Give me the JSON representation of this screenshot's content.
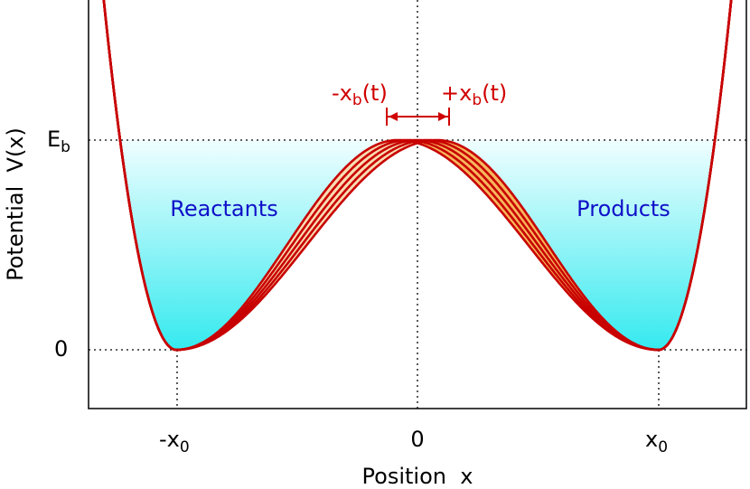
{
  "axes": {
    "y_label": "Potential  V(x)",
    "x_label": "Position  x"
  },
  "y_ticks": [
    {
      "text": "E",
      "sub": "b"
    },
    {
      "text": "0"
    }
  ],
  "x_ticks": [
    {
      "text": "-x",
      "sub": "0"
    },
    {
      "text": "0"
    },
    {
      "text": "x",
      "sub": "0"
    }
  ],
  "regions": {
    "left": "Reactants",
    "right": "Products"
  },
  "barrier": {
    "left": {
      "text": "-x",
      "sub": "b",
      "suffix": "(t)"
    },
    "right": {
      "text": "+x",
      "sub": "b",
      "suffix": "(t)"
    }
  }
}
